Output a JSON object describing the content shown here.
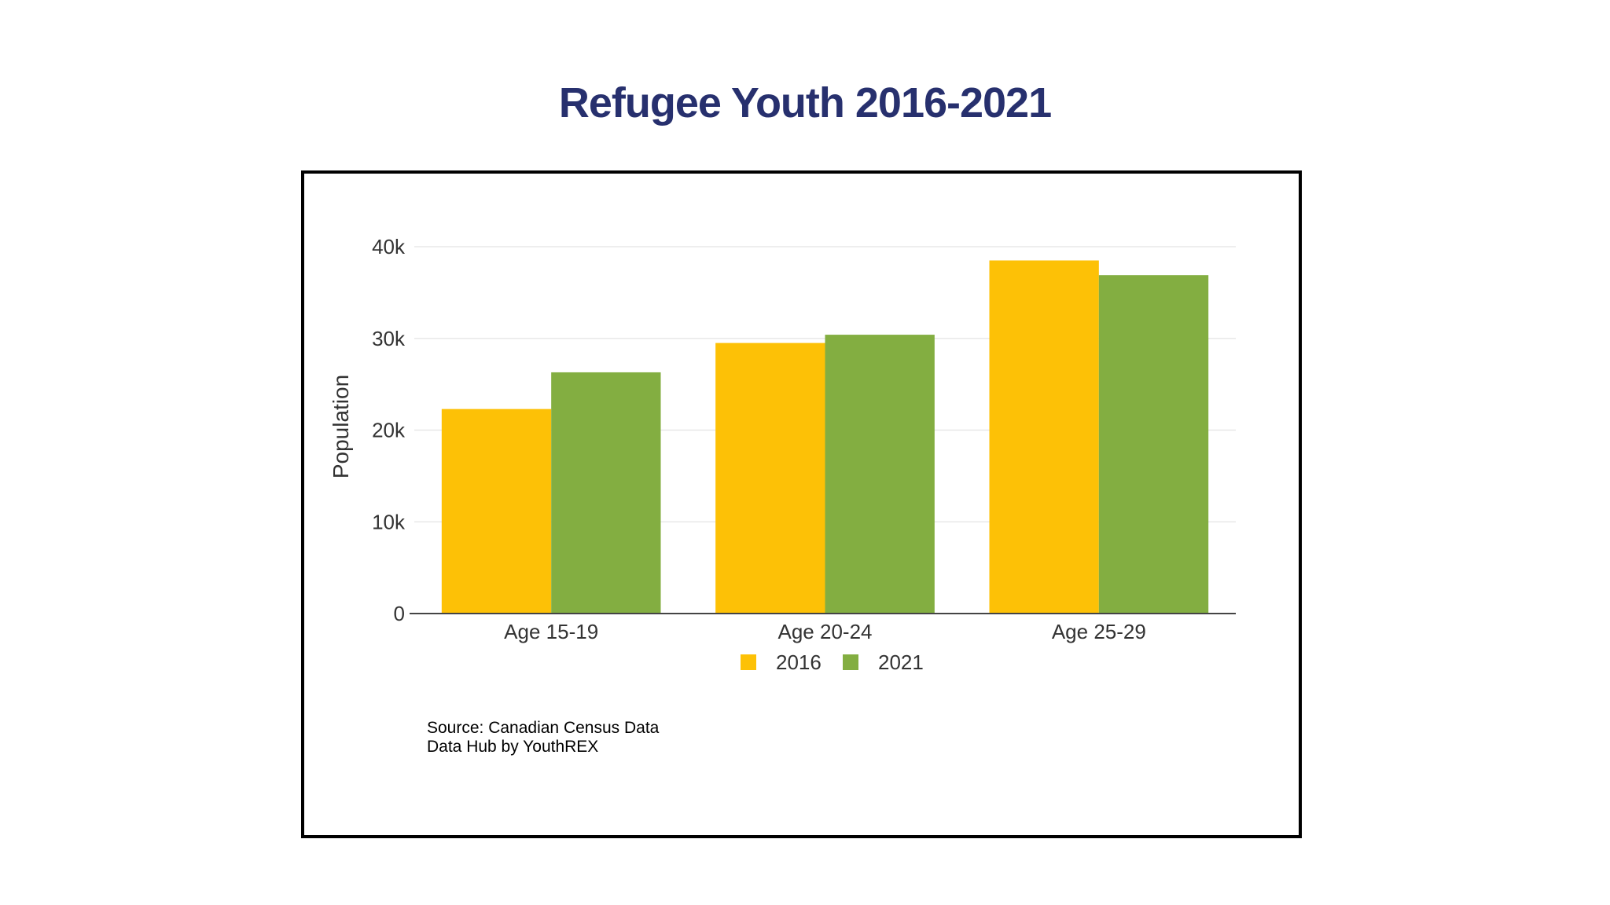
{
  "chart_data": {
    "type": "bar",
    "title": "Refugee Youth 2016-2021",
    "xlabel": "",
    "ylabel": "Population",
    "categories": [
      "Age 15-19",
      "Age 20-24",
      "Age 25-29"
    ],
    "series": [
      {
        "name": "2016",
        "color": "#FDC106",
        "values": [
          22300,
          29500,
          38500
        ]
      },
      {
        "name": "2021",
        "color": "#83AE41",
        "values": [
          26300,
          30400,
          36900
        ]
      }
    ],
    "ylim": [
      0,
      40000
    ],
    "yticks": [
      {
        "value": 0,
        "label": "0"
      },
      {
        "value": 10000,
        "label": "10k"
      },
      {
        "value": 20000,
        "label": "20k"
      },
      {
        "value": 30000,
        "label": "30k"
      },
      {
        "value": 40000,
        "label": "40k"
      }
    ],
    "grid": true,
    "legend_position": "bottom-center"
  },
  "source": {
    "line1": "Source: Canadian Census Data",
    "line2": "Data Hub by YouthREX"
  }
}
